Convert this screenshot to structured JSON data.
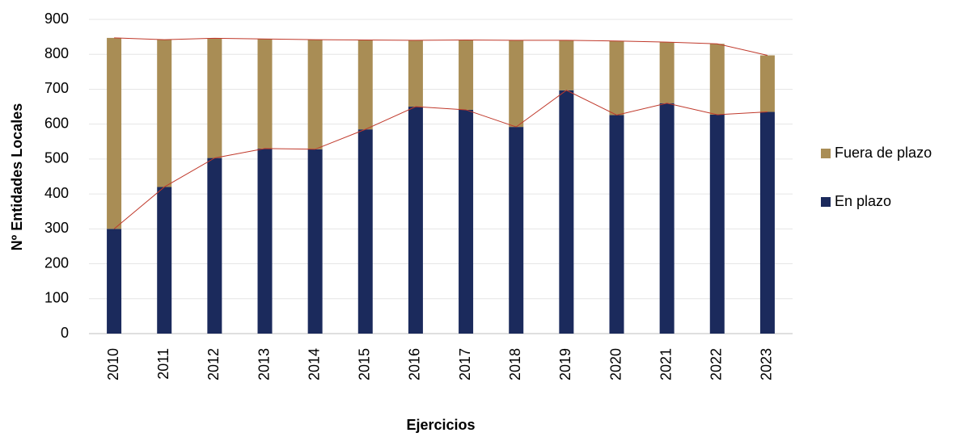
{
  "chart_data": {
    "type": "stacked_bar",
    "categories": [
      "2010",
      "2011",
      "2012",
      "2013",
      "2014",
      "2015",
      "2016",
      "2017",
      "2018",
      "2019",
      "2020",
      "2021",
      "2022",
      "2023"
    ],
    "series": [
      {
        "name": "En plazo",
        "color": "#1b2a5c",
        "values": [
          300,
          420,
          503,
          530,
          528,
          585,
          650,
          641,
          592,
          697,
          626,
          660,
          627,
          635
        ]
      },
      {
        "name": "Fuera de plazo",
        "color": "#a98d55",
        "values": [
          547,
          422,
          343,
          314,
          314,
          256,
          190,
          200,
          248,
          143,
          212,
          175,
          203,
          162
        ]
      }
    ],
    "line_color": "#c0392b",
    "ylim": [
      0,
      900
    ],
    "yticks": [
      0,
      100,
      200,
      300,
      400,
      500,
      600,
      700,
      800,
      900
    ],
    "grid": true,
    "ylabel": "Nº Entidades Locales",
    "xlabel": "Ejercicios"
  }
}
